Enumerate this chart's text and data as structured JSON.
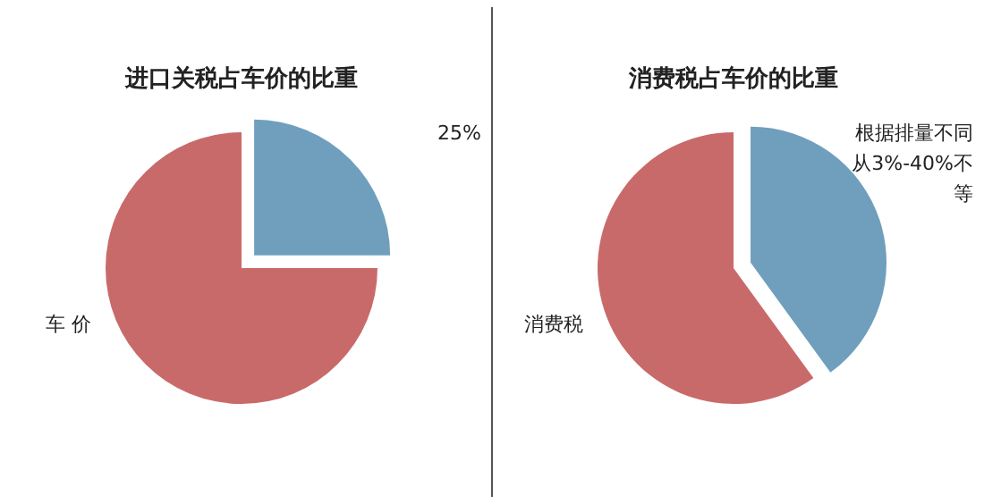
{
  "chart_data": [
    {
      "type": "pie",
      "title": "进口关税占车价的比重",
      "categories": [
        null,
        "车 价"
      ],
      "values": [
        25,
        75
      ],
      "value_labels": [
        "25%",
        null
      ],
      "colors": [
        "#6f9fbd",
        "#c96a6a"
      ]
    },
    {
      "type": "pie",
      "title": "消费税占车价的比重",
      "categories": [
        "根据排量不同从3%-40%不等",
        "消费税"
      ],
      "values": [
        40,
        60
      ],
      "colors": [
        "#6f9fbd",
        "#c96a6a"
      ]
    }
  ]
}
